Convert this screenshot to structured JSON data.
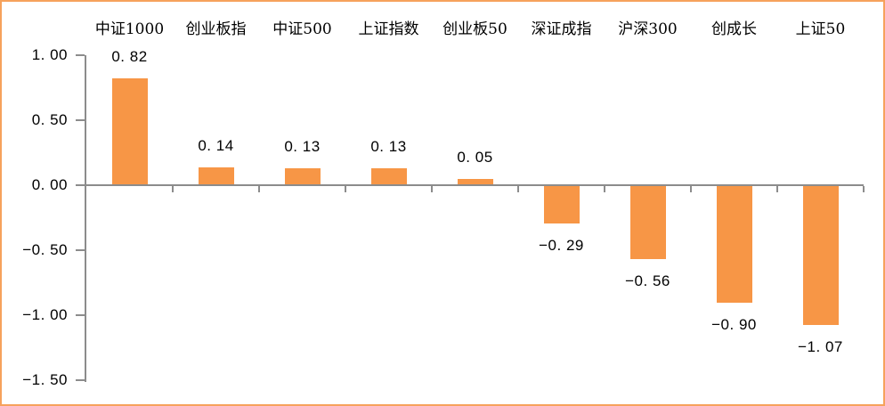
{
  "chart_data": {
    "type": "bar",
    "title": "",
    "xlabel": "",
    "ylabel": "",
    "categories": [
      "中证1000",
      "创业板指",
      "中证500",
      "上证指数",
      "创业板50",
      "深证成指",
      "沪深300",
      "创成长",
      "上证50"
    ],
    "values": [
      0.82,
      0.14,
      0.13,
      0.13,
      0.05,
      -0.29,
      -0.56,
      -0.9,
      -1.07
    ],
    "value_labels": [
      "0. 82",
      "0. 14",
      "0. 13",
      "0. 13",
      "0. 05",
      "−0. 29",
      "−0. 56",
      "−0. 90",
      "−1. 07"
    ],
    "ylim": [
      -1.5,
      1.0
    ],
    "y_ticks": [
      {
        "value": 1.0,
        "label": "1. 00"
      },
      {
        "value": 0.5,
        "label": "0. 50"
      },
      {
        "value": 0.0,
        "label": "0. 00"
      },
      {
        "value": -0.5,
        "label": "−0. 50"
      },
      {
        "value": -1.0,
        "label": "−1. 00"
      },
      {
        "value": -1.5,
        "label": "−1. 50"
      }
    ],
    "legend": "none",
    "grid": false
  },
  "style": {
    "bar_color": "#F79646",
    "frame_border_color": "#F6A25C",
    "axis_color": "#8C8C8C",
    "label_color": "#000000",
    "background": "#FFFFFF"
  }
}
